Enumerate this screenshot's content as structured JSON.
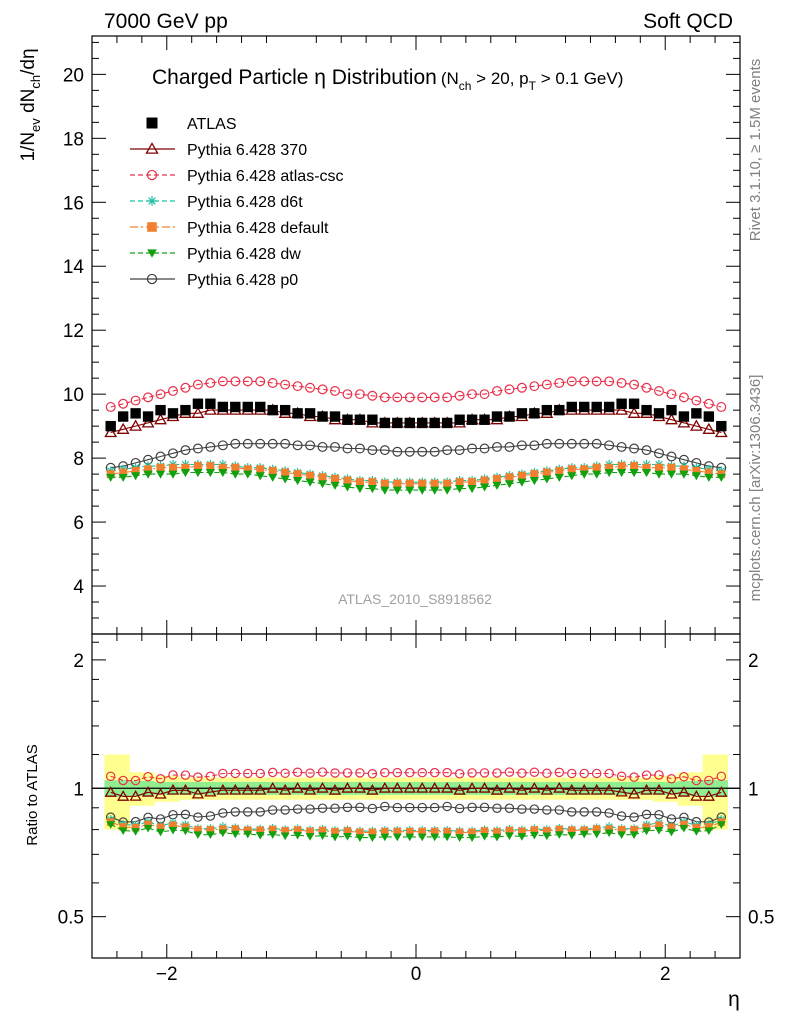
{
  "header": {
    "left": "7000 GeV pp",
    "right": "Soft QCD"
  },
  "side_text": {
    "rivet": "Rivet 3.1.10, ≥ 1.5M events",
    "mcplots": "mcplots.cern.ch [arXiv:1306.3436]"
  },
  "title": {
    "main": "Charged Particle η Distribution",
    "cond_open": "(N",
    "cond_sub1": "ch",
    "cond_mid": " > 20, p",
    "cond_sub2": "T",
    "cond_end": " > 0.1 GeV)"
  },
  "watermark": "ATLAS_2010_S8918562",
  "ylabel_main": {
    "a": "1/N",
    "a_sub": "ev",
    "b": " dN",
    "b_sub": "ch",
    "c": "/dη"
  },
  "ylabel_ratio": "Ratio to ATLAS",
  "xlabel": "η",
  "chart_data": {
    "type": "scatter",
    "xlim": [
      -2.6,
      2.6
    ],
    "ylim_main": [
      2.5,
      21.2
    ],
    "ylim_ratio": [
      0.4,
      2.3
    ],
    "ratio_yscale": "log",
    "x_ticks": [
      -2,
      0,
      2
    ],
    "x_tick_labels": [
      "−2",
      "0",
      "2"
    ],
    "y_ticks_main": [
      4,
      6,
      8,
      10,
      12,
      14,
      16,
      18,
      20
    ],
    "y_ticks_main_labels": [
      "4",
      "6",
      "8",
      "10",
      "12",
      "14",
      "16",
      "18",
      "20"
    ],
    "y_ticks_ratio": [
      0.5,
      1,
      2
    ],
    "y_ticks_ratio_labels": [
      "0.5",
      "1",
      "2"
    ],
    "legend_position": "top-left",
    "x": [
      -2.45,
      -2.35,
      -2.25,
      -2.15,
      -2.05,
      -1.95,
      -1.85,
      -1.75,
      -1.65,
      -1.55,
      -1.45,
      -1.35,
      -1.25,
      -1.15,
      -1.05,
      -0.95,
      -0.85,
      -0.75,
      -0.65,
      -0.55,
      -0.45,
      -0.35,
      -0.25,
      -0.15,
      -0.05,
      0.05,
      0.15,
      0.25,
      0.35,
      0.45,
      0.55,
      0.65,
      0.75,
      0.85,
      0.95,
      1.05,
      1.15,
      1.25,
      1.35,
      1.45,
      1.55,
      1.65,
      1.75,
      1.85,
      1.95,
      2.05,
      2.15,
      2.25,
      2.35,
      2.45
    ],
    "series": [
      {
        "name": "ATLAS",
        "color": "#000000",
        "marker": "square-filled",
        "line": "none",
        "values": [
          9.0,
          9.3,
          9.4,
          9.3,
          9.5,
          9.4,
          9.5,
          9.7,
          9.7,
          9.6,
          9.6,
          9.6,
          9.6,
          9.5,
          9.5,
          9.4,
          9.4,
          9.3,
          9.3,
          9.2,
          9.2,
          9.2,
          9.1,
          9.1,
          9.1,
          9.1,
          9.1,
          9.1,
          9.2,
          9.2,
          9.2,
          9.3,
          9.3,
          9.4,
          9.4,
          9.5,
          9.5,
          9.6,
          9.6,
          9.6,
          9.6,
          9.7,
          9.7,
          9.5,
          9.4,
          9.5,
          9.3,
          9.4,
          9.3,
          9.0
        ]
      },
      {
        "name": "Pythia 6.428 370",
        "color": "#800000",
        "marker": "triangle-open",
        "line": "solid",
        "values": [
          8.8,
          8.9,
          9.0,
          9.1,
          9.2,
          9.3,
          9.4,
          9.4,
          9.5,
          9.5,
          9.5,
          9.5,
          9.5,
          9.5,
          9.4,
          9.4,
          9.3,
          9.3,
          9.2,
          9.2,
          9.2,
          9.1,
          9.1,
          9.1,
          9.1,
          9.1,
          9.1,
          9.1,
          9.1,
          9.2,
          9.2,
          9.2,
          9.3,
          9.3,
          9.4,
          9.4,
          9.5,
          9.5,
          9.5,
          9.5,
          9.5,
          9.5,
          9.4,
          9.4,
          9.3,
          9.2,
          9.1,
          9.0,
          8.9,
          8.8
        ]
      },
      {
        "name": "Pythia 6.428 atlas-csc",
        "color": "#e8304a",
        "marker": "circle-open",
        "line": "dashed",
        "values": [
          9.6,
          9.7,
          9.8,
          9.9,
          10.0,
          10.1,
          10.2,
          10.3,
          10.35,
          10.4,
          10.4,
          10.4,
          10.4,
          10.35,
          10.3,
          10.25,
          10.2,
          10.15,
          10.1,
          10.0,
          10.0,
          9.95,
          9.9,
          9.9,
          9.9,
          9.9,
          9.9,
          9.9,
          9.95,
          10.0,
          10.0,
          10.1,
          10.15,
          10.2,
          10.25,
          10.3,
          10.35,
          10.4,
          10.4,
          10.4,
          10.4,
          10.35,
          10.3,
          10.2,
          10.1,
          10.0,
          9.9,
          9.8,
          9.7,
          9.6
        ]
      },
      {
        "name": "Pythia 6.428 d6t",
        "color": "#1ec0a0",
        "marker": "asterisk",
        "line": "dashed",
        "values": [
          7.6,
          7.65,
          7.7,
          7.75,
          7.75,
          7.8,
          7.8,
          7.8,
          7.8,
          7.8,
          7.75,
          7.7,
          7.7,
          7.65,
          7.6,
          7.55,
          7.5,
          7.45,
          7.4,
          7.35,
          7.3,
          7.3,
          7.25,
          7.25,
          7.25,
          7.25,
          7.25,
          7.25,
          7.3,
          7.3,
          7.35,
          7.4,
          7.45,
          7.5,
          7.55,
          7.6,
          7.65,
          7.7,
          7.7,
          7.75,
          7.8,
          7.8,
          7.8,
          7.8,
          7.8,
          7.75,
          7.75,
          7.7,
          7.65,
          7.6
        ]
      },
      {
        "name": "Pythia 6.428 default",
        "color": "#f08030",
        "marker": "square-filled",
        "line": "dashdot",
        "values": [
          7.5,
          7.55,
          7.6,
          7.65,
          7.7,
          7.7,
          7.7,
          7.75,
          7.75,
          7.7,
          7.7,
          7.65,
          7.65,
          7.6,
          7.55,
          7.5,
          7.45,
          7.4,
          7.35,
          7.3,
          7.25,
          7.25,
          7.2,
          7.2,
          7.2,
          7.2,
          7.2,
          7.2,
          7.25,
          7.25,
          7.3,
          7.35,
          7.4,
          7.45,
          7.5,
          7.55,
          7.6,
          7.65,
          7.65,
          7.7,
          7.7,
          7.75,
          7.75,
          7.7,
          7.7,
          7.7,
          7.65,
          7.6,
          7.55,
          7.5
        ]
      },
      {
        "name": "Pythia 6.428 dw",
        "color": "#10a010",
        "marker": "triangle-down-filled",
        "line": "dashed",
        "values": [
          7.4,
          7.4,
          7.45,
          7.5,
          7.5,
          7.5,
          7.55,
          7.55,
          7.55,
          7.55,
          7.5,
          7.5,
          7.45,
          7.4,
          7.35,
          7.3,
          7.25,
          7.2,
          7.15,
          7.1,
          7.05,
          7.05,
          7.0,
          7.0,
          7.0,
          7.0,
          7.0,
          7.0,
          7.05,
          7.05,
          7.1,
          7.15,
          7.2,
          7.25,
          7.3,
          7.35,
          7.4,
          7.45,
          7.5,
          7.5,
          7.55,
          7.55,
          7.55,
          7.55,
          7.5,
          7.5,
          7.5,
          7.45,
          7.4,
          7.4
        ]
      },
      {
        "name": "Pythia 6.428 p0",
        "color": "#404040",
        "marker": "circle-open",
        "line": "solid",
        "values": [
          7.7,
          7.75,
          7.85,
          7.95,
          8.05,
          8.15,
          8.25,
          8.3,
          8.35,
          8.4,
          8.45,
          8.45,
          8.45,
          8.45,
          8.45,
          8.4,
          8.4,
          8.35,
          8.35,
          8.3,
          8.3,
          8.25,
          8.25,
          8.2,
          8.2,
          8.2,
          8.2,
          8.25,
          8.25,
          8.3,
          8.3,
          8.35,
          8.35,
          8.4,
          8.4,
          8.45,
          8.45,
          8.45,
          8.45,
          8.45,
          8.4,
          8.35,
          8.3,
          8.25,
          8.15,
          8.05,
          7.95,
          7.85,
          7.75,
          7.7
        ]
      }
    ],
    "atlas_band_inner": [
      0.045,
      0.045,
      0.04,
      0.04,
      0.035,
      0.035,
      0.035,
      0.035,
      0.035,
      0.035,
      0.035,
      0.035,
      0.035,
      0.035,
      0.035,
      0.035,
      0.035,
      0.035,
      0.035,
      0.035,
      0.035,
      0.035,
      0.035,
      0.035,
      0.035,
      0.035,
      0.035,
      0.035,
      0.035,
      0.035,
      0.035,
      0.035,
      0.035,
      0.035,
      0.035,
      0.035,
      0.035,
      0.035,
      0.035,
      0.035,
      0.035,
      0.035,
      0.035,
      0.035,
      0.035,
      0.035,
      0.04,
      0.04,
      0.045,
      0.045
    ],
    "atlas_band_outer": [
      0.2,
      0.2,
      0.09,
      0.09,
      0.07,
      0.07,
      0.06,
      0.06,
      0.06,
      0.06,
      0.06,
      0.06,
      0.06,
      0.06,
      0.06,
      0.06,
      0.06,
      0.06,
      0.06,
      0.06,
      0.06,
      0.06,
      0.06,
      0.06,
      0.06,
      0.06,
      0.06,
      0.06,
      0.06,
      0.06,
      0.06,
      0.06,
      0.06,
      0.06,
      0.06,
      0.06,
      0.06,
      0.06,
      0.06,
      0.06,
      0.06,
      0.06,
      0.06,
      0.06,
      0.07,
      0.07,
      0.09,
      0.09,
      0.2,
      0.2
    ]
  }
}
